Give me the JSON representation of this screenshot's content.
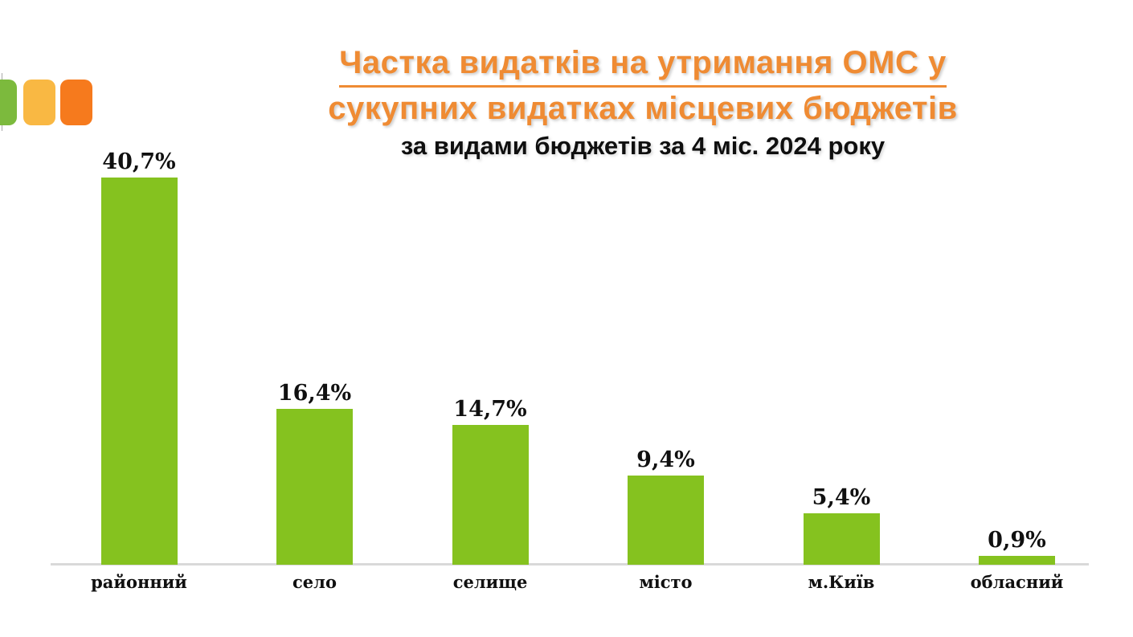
{
  "logo": {
    "squares": [
      {
        "name": "green",
        "color": "#7cba3d"
      },
      {
        "name": "yellow",
        "color": "#f9b843"
      },
      {
        "name": "orange",
        "color": "#f67a1d"
      }
    ],
    "line_color": "#a9a9a9"
  },
  "title": {
    "line1": "Частка видатків на утримання ОМС у",
    "line2": "сукупних видатках місцевих бюджетів",
    "subtitle": "за видами бюджетів за 4 міс. 2024 року",
    "accent_color": "#ef8b33"
  },
  "chart_data": {
    "type": "bar",
    "categories": [
      "районний",
      "село",
      "селище",
      "місто",
      "м.Київ",
      "обласний"
    ],
    "values": [
      40.7,
      16.4,
      14.7,
      9.4,
      5.4,
      0.9
    ],
    "labels": [
      "40,7%",
      "16,4%",
      "14,7%",
      "9,4%",
      "5,4%",
      "0,9%"
    ],
    "title": "Частка видатків на утримання ОМС у сукупних видатках місцевих бюджетів за видами бюджетів за 4 міс. 2024 року",
    "xlabel": "",
    "ylabel": "",
    "ylim": [
      0,
      43
    ],
    "grid": false,
    "legend": false,
    "bar_color": "#85c21f",
    "axis_line_color": "#d9d9d9",
    "value_label_color": "#101010"
  }
}
